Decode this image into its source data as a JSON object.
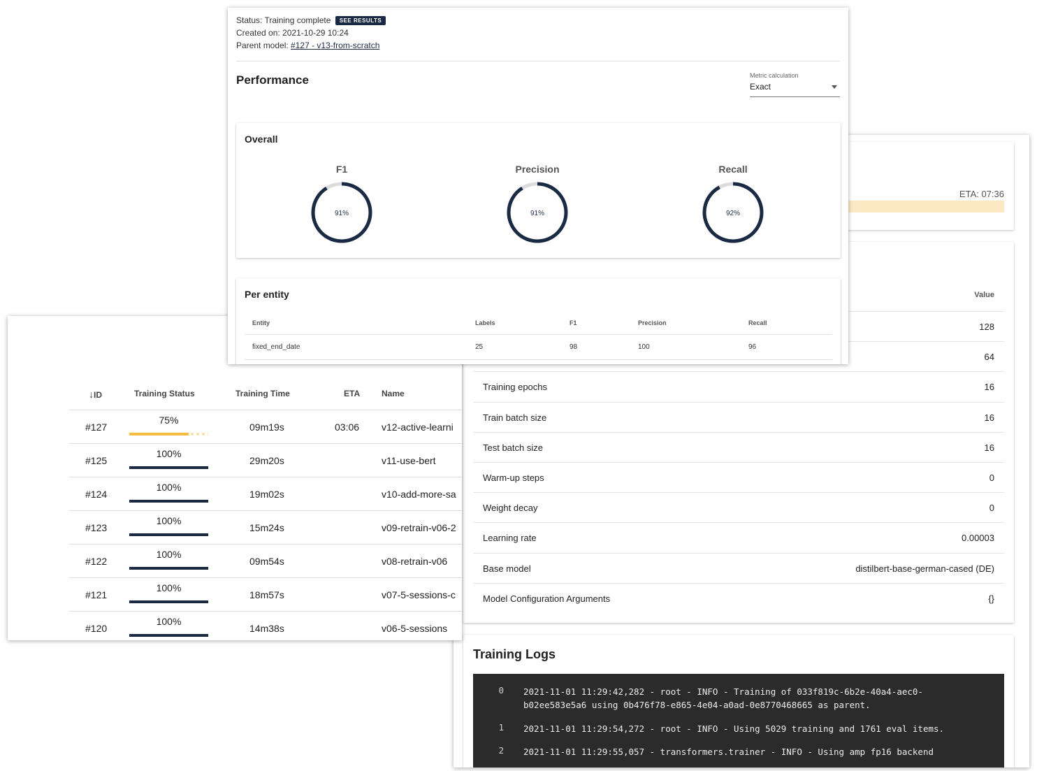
{
  "status_panel": {
    "status_text": "Status: Training complete",
    "see_results_label": "SEE RESULTS",
    "created_on": "Created on: 2021-10-29 10:24",
    "parent_model_prefix": "Parent model: ",
    "parent_model_link": "#127 - v13-from-scratch"
  },
  "performance": {
    "title": "Performance",
    "metric_calculation": {
      "label": "Metric calculation",
      "value": "Exact"
    },
    "overall": {
      "title": "Overall",
      "gauges": [
        {
          "label": "F1",
          "value_text": "91%",
          "value": 0.91
        },
        {
          "label": "Precision",
          "value_text": "91%",
          "value": 0.91
        },
        {
          "label": "Recall",
          "value_text": "92%",
          "value": 0.92
        }
      ]
    },
    "per_entity": {
      "title": "Per entity",
      "columns": [
        "Entity",
        "Labels",
        "F1",
        "Precision",
        "Recall"
      ],
      "rows": [
        [
          "fixed_end_date",
          "25",
          "98",
          "100",
          "96"
        ]
      ]
    }
  },
  "progress": {
    "eta": "ETA: 07:36"
  },
  "parameters": {
    "value_header": "Value",
    "rows": [
      {
        "name": "",
        "value": "128"
      },
      {
        "name": "",
        "value": "64"
      },
      {
        "name": "Training epochs",
        "value": "16"
      },
      {
        "name": "Train batch size",
        "value": "16"
      },
      {
        "name": "Test batch size",
        "value": "16"
      },
      {
        "name": "Warm-up steps",
        "value": "0"
      },
      {
        "name": "Weight decay",
        "value": "0"
      },
      {
        "name": "Learning rate",
        "value": "0.00003"
      },
      {
        "name": "Base model",
        "value": "distilbert-base-german-cased (DE)"
      },
      {
        "name": "Model Configuration Arguments",
        "value": "{}"
      }
    ]
  },
  "training_logs": {
    "title": "Training Logs",
    "lines": [
      {
        "num": "0",
        "text": "2021-11-01 11:29:42,282 - root - INFO - Training of 033f819c-6b2e-40a4-aec0-b02ee583e5a6 using 0b476f78-e865-4e04-a0ad-0e8770468665 as parent."
      },
      {
        "num": "1",
        "text": "2021-11-01 11:29:54,272 - root - INFO - Using 5029 training and 1761 eval items."
      },
      {
        "num": "2",
        "text": "2021-11-01 11:29:55,057 - transformers.trainer - INFO - Using amp fp16 backend"
      }
    ]
  },
  "models_table": {
    "sort_arrow": "↓",
    "columns": {
      "id": "ID",
      "status": "Training Status",
      "time": "Training Time",
      "eta": "ETA",
      "name": "Name"
    },
    "colors": {
      "in_progress": "#f6bd41",
      "complete": "#1b2a44"
    },
    "rows": [
      {
        "id": "#127",
        "status": "75%",
        "progress": 0.75,
        "time": "09m19s",
        "eta": "03:06",
        "name": "v12-active-learni"
      },
      {
        "id": "#125",
        "status": "100%",
        "progress": 1.0,
        "time": "29m20s",
        "eta": "",
        "name": "v11-use-bert"
      },
      {
        "id": "#124",
        "status": "100%",
        "progress": 1.0,
        "time": "19m02s",
        "eta": "",
        "name": "v10-add-more-sa"
      },
      {
        "id": "#123",
        "status": "100%",
        "progress": 1.0,
        "time": "15m24s",
        "eta": "",
        "name": "v09-retrain-v06-2"
      },
      {
        "id": "#122",
        "status": "100%",
        "progress": 1.0,
        "time": "09m54s",
        "eta": "",
        "name": "v08-retrain-v06"
      },
      {
        "id": "#121",
        "status": "100%",
        "progress": 1.0,
        "time": "18m57s",
        "eta": "",
        "name": "v07-5-sessions-c"
      },
      {
        "id": "#120",
        "status": "100%",
        "progress": 1.0,
        "time": "14m38s",
        "eta": "",
        "name": "v06-5-sessions"
      }
    ]
  }
}
